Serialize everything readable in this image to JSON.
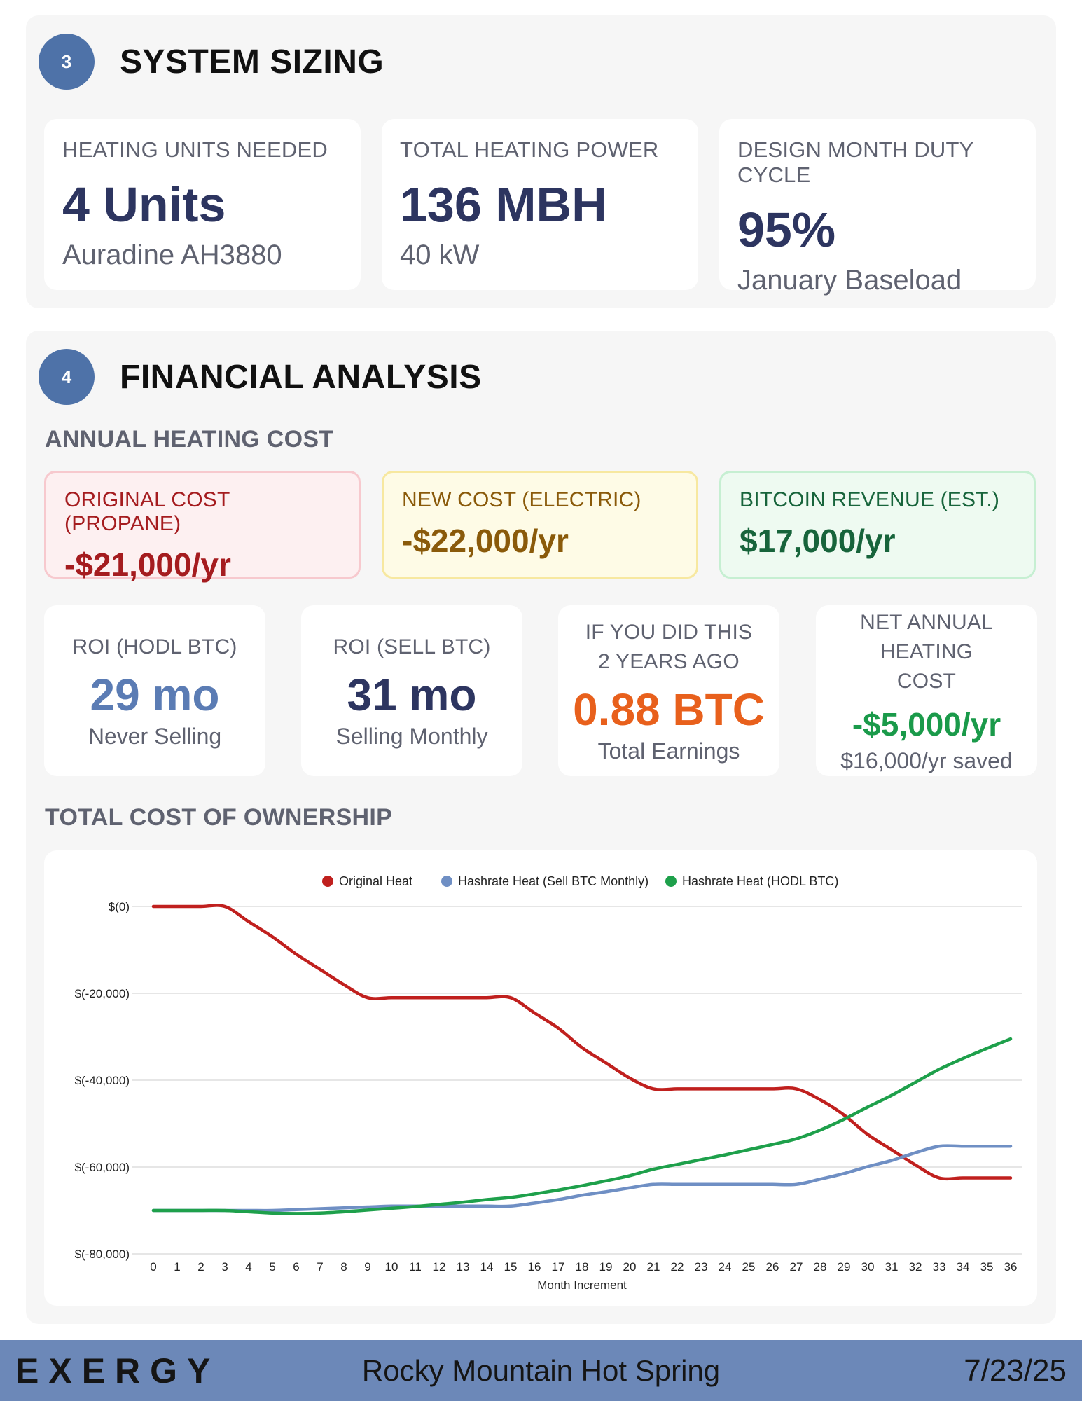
{
  "system_sizing": {
    "badge": "3",
    "title": "SYSTEM SIZING",
    "cards": [
      {
        "label": "HEATING UNITS NEEDED",
        "value": "4 Units",
        "sub": "Auradine AH3880"
      },
      {
        "label": "TOTAL HEATING POWER",
        "value": "136 MBH",
        "sub": "40 kW"
      },
      {
        "label": "DESIGN MONTH DUTY CYCLE",
        "value": "95%",
        "sub": "January Baseload"
      }
    ]
  },
  "financial_analysis": {
    "badge": "4",
    "title": "FINANCIAL ANALYSIS",
    "annual_heating_cost_heading": "ANNUAL HEATING COST",
    "costs": {
      "original": {
        "label": "ORIGINAL COST (PROPANE)",
        "value": "-$21,000/yr"
      },
      "new": {
        "label": "NEW COST (ELECTRIC)",
        "value": "-$22,000/yr"
      },
      "bitcoin": {
        "label": "BITCOIN REVENUE (EST.)",
        "value": "$17,000/yr"
      }
    },
    "metrics": [
      {
        "label": "ROI (HODL BTC)",
        "value": "29 mo",
        "sub": "Never Selling",
        "color": "#5b7cb4"
      },
      {
        "label": "ROI (SELL BTC)",
        "value": "31 mo",
        "sub": "Selling Monthly",
        "color": "#2d3560"
      },
      {
        "label": "IF YOU DID THIS 2 YEARS AGO",
        "value": "0.88 BTC",
        "sub": "Total Earnings",
        "color": "#e8601c"
      },
      {
        "label": "NET ANNUAL HEATING COST",
        "value": "-$5,000/yr",
        "sub": "$16,000/yr saved",
        "color": "#1a9a4a"
      }
    ],
    "tco_heading": "TOTAL COST OF OWNERSHIP"
  },
  "chart_data": {
    "type": "line",
    "title": "",
    "xlabel": "Month Increment",
    "ylabel": "",
    "ylim": [
      -80000,
      0
    ],
    "y_ticks": [
      0,
      -20000,
      -40000,
      -60000,
      -80000
    ],
    "y_tick_labels": [
      "$(0)",
      "$(-20,000)",
      "$(-40,000)",
      "$(-60,000)",
      "$(-80,000)"
    ],
    "grid": true,
    "legend_position": "top-center",
    "x": [
      0,
      1,
      2,
      3,
      4,
      5,
      6,
      7,
      8,
      9,
      10,
      11,
      12,
      13,
      14,
      15,
      16,
      17,
      18,
      19,
      20,
      21,
      22,
      23,
      24,
      25,
      26,
      27,
      28,
      29,
      30,
      31,
      32,
      33,
      34,
      35,
      36
    ],
    "series": [
      {
        "name": "Original Heat",
        "color": "#c0201e",
        "values": [
          0,
          0,
          0,
          0,
          -3500,
          -7000,
          -11000,
          -14500,
          -18000,
          -21000,
          -21000,
          -21000,
          -21000,
          -21000,
          -21000,
          -21000,
          -24500,
          -28000,
          -32500,
          -36000,
          -39500,
          -42000,
          -42000,
          -42000,
          -42000,
          -42000,
          -42000,
          -42000,
          -44500,
          -48000,
          -52500,
          -56000,
          -59500,
          -62500,
          -62500,
          -62500,
          -62500
        ]
      },
      {
        "name": "Hashrate Heat (Sell BTC Monthly)",
        "color": "#6f8fc4",
        "values": [
          -70000,
          -70000,
          -70000,
          -70000,
          -70000,
          -70000,
          -69800,
          -69600,
          -69400,
          -69200,
          -69000,
          -69000,
          -69000,
          -69000,
          -69000,
          -69000,
          -68300,
          -67500,
          -66500,
          -65700,
          -64800,
          -64000,
          -64000,
          -64000,
          -64000,
          -64000,
          -64000,
          -64000,
          -62800,
          -61500,
          -59900,
          -58500,
          -56700,
          -55200,
          -55200,
          -55200,
          -55200
        ]
      },
      {
        "name": "Hashrate Heat (HODL BTC)",
        "color": "#1ea04b",
        "values": [
          -70000,
          -70000,
          -70000,
          -70000,
          -70300,
          -70600,
          -70700,
          -70600,
          -70300,
          -69900,
          -69500,
          -69100,
          -68600,
          -68100,
          -67500,
          -67000,
          -66200,
          -65300,
          -64300,
          -63200,
          -62000,
          -60500,
          -59400,
          -58300,
          -57200,
          -56000,
          -54800,
          -53500,
          -51500,
          -49000,
          -46200,
          -43500,
          -40500,
          -37500,
          -35000,
          -32700,
          -30500
        ]
      }
    ]
  },
  "footer": {
    "logo": "EXERGY",
    "site_name": "Rocky Mountain Hot Spring",
    "date": "7/23/25"
  }
}
